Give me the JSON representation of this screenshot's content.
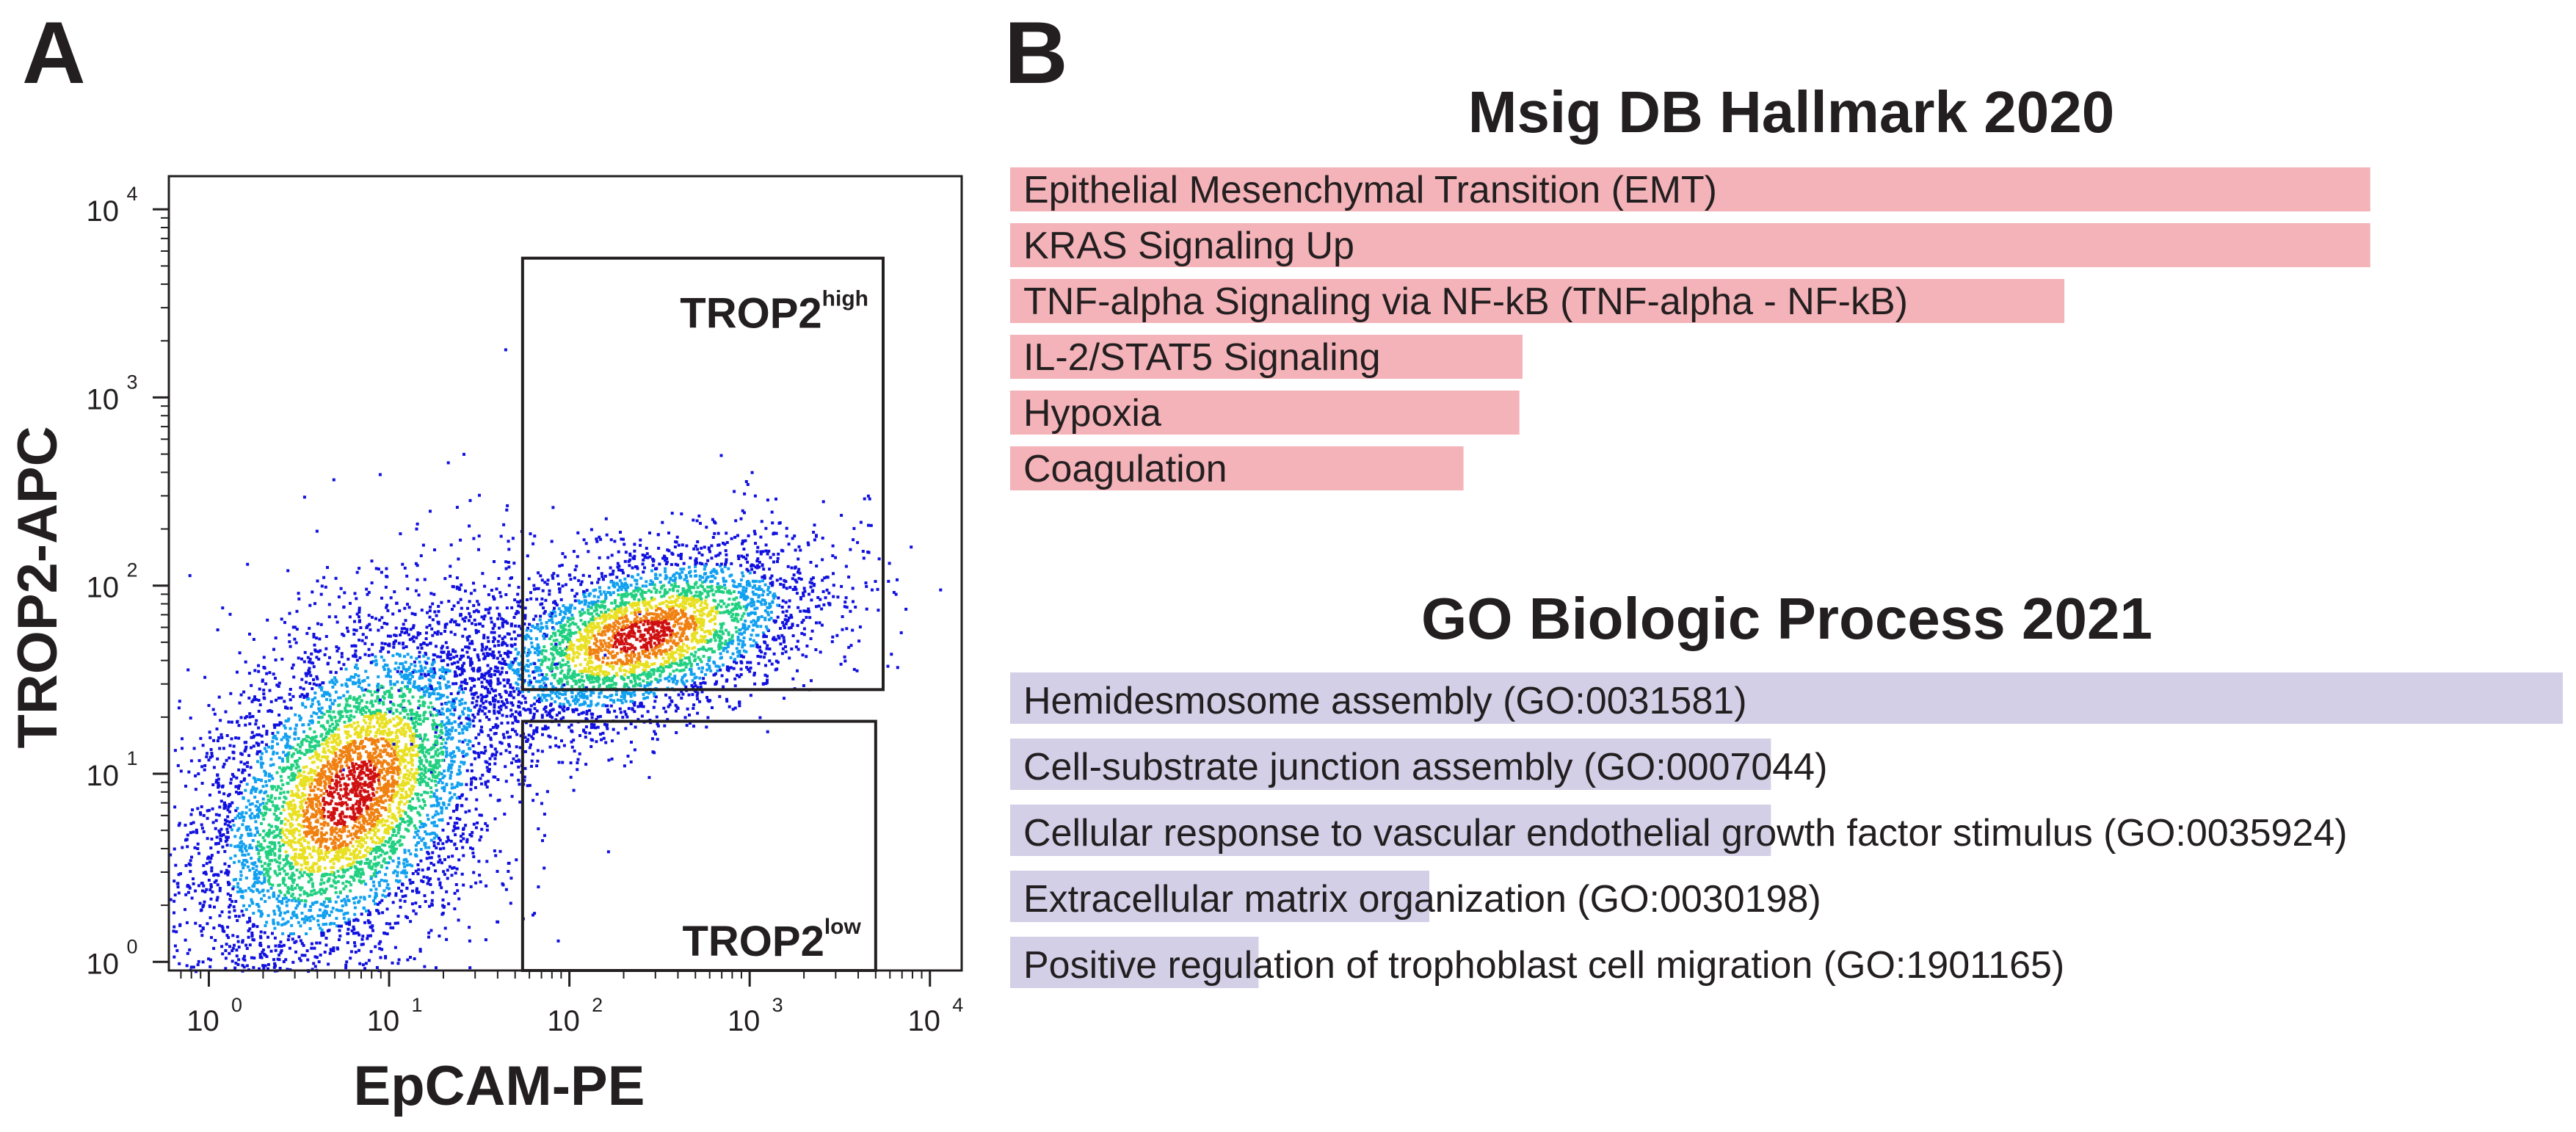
{
  "panels": {
    "a": "A",
    "b": "B"
  },
  "chart_data": [
    {
      "type": "scatter",
      "subtype": "flow-cytometry-density",
      "xlabel": "EpCAM-PE",
      "ylabel": "TROP2-APC",
      "xscale": "log",
      "yscale": "log",
      "xlim": [
        0.6,
        15000
      ],
      "ylim": [
        0.9,
        15000
      ],
      "x_ticks": [
        {
          "value": 1,
          "base": "10",
          "exp": "0"
        },
        {
          "value": 10,
          "base": "10",
          "exp": "1"
        },
        {
          "value": 100,
          "base": "10",
          "exp": "2"
        },
        {
          "value": 1000,
          "base": "10",
          "exp": "3"
        },
        {
          "value": 10000,
          "base": "10",
          "exp": "4"
        }
      ],
      "y_ticks": [
        {
          "value": 1,
          "base": "10",
          "exp": "0"
        },
        {
          "value": 10,
          "base": "10",
          "exp": "1"
        },
        {
          "value": 100,
          "base": "10",
          "exp": "2"
        },
        {
          "value": 1000,
          "base": "10",
          "exp": "3"
        },
        {
          "value": 10000,
          "base": "10",
          "exp": "4"
        }
      ],
      "gates": [
        {
          "name": "TROP2",
          "sup": "high",
          "x_range": [
            55,
            5500
          ],
          "y_range": [
            28,
            5500
          ]
        },
        {
          "name": "TROP2",
          "sup": "low",
          "x_range": [
            55,
            5000
          ],
          "y_range": [
            0.9,
            19
          ]
        }
      ],
      "populations": [
        {
          "center_x": 6,
          "center_y": 8,
          "spread_x": 0.45,
          "spread_y": 0.5,
          "weight": 0.6
        },
        {
          "center_x": 250,
          "center_y": 55,
          "spread_x": 0.5,
          "spread_y": 0.25,
          "weight": 0.4
        }
      ],
      "colormap": [
        "#1010e0",
        "#10a0f0",
        "#20d080",
        "#e8e020",
        "#f08010",
        "#d01010"
      ]
    },
    {
      "type": "bar",
      "orientation": "horizontal",
      "title": "Msig DB Hallmark 2020",
      "bar_color": "#f4b3b8",
      "max_value": 1.0,
      "categories": [
        "Epithelial Mesenchymal Transition (EMT)",
        "KRAS Signaling Up",
        "TNF-alpha Signaling via NF-kB (TNF-alpha - NF-kB)",
        "IL-2/STAT5 Signaling",
        "Hypoxia",
        "Coagulation"
      ],
      "values": [
        0.876,
        0.876,
        0.679,
        0.33,
        0.328,
        0.292
      ]
    },
    {
      "type": "bar",
      "orientation": "horizontal",
      "title": "GO Biologic Process 2021",
      "bar_color": "#d2cfe7",
      "max_value": 1.0,
      "categories": [
        "Hemidesmosome assembly (GO:0031581)",
        "Cell-substrate junction assembly (GO:0007044)",
        "Cellular response to vascular endothelial growth factor stimulus (GO:0035924)",
        "Extracellular matrix organization (GO:0030198)",
        "Positive regulation of trophoblast cell migration (GO:1901165)"
      ],
      "values": [
        1.0,
        0.49,
        0.49,
        0.27,
        0.16
      ]
    }
  ]
}
